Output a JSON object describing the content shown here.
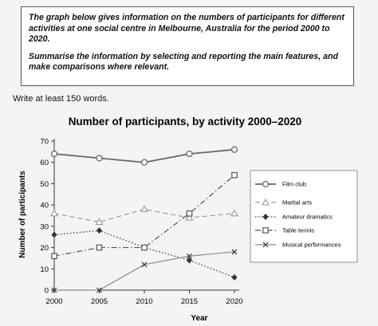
{
  "task": {
    "paragraph1": "The graph below gives information on the numbers of participants for different activities at one social centre in Melbourne, Australia for the period 2000 to 2020.",
    "paragraph2": "Summarise the information by selecting and reporting the main features, and make comparisons where relevant."
  },
  "instruction": "Write at least 150 words.",
  "chart_data": {
    "type": "line",
    "title": "Number of participants, by activity 2000–2020",
    "xlabel": "Year",
    "ylabel": "Number of participants",
    "x": [
      2000,
      2005,
      2010,
      2015,
      2020
    ],
    "ylim": [
      0,
      70
    ],
    "yticks": [
      0,
      10,
      20,
      30,
      40,
      50,
      60,
      70
    ],
    "grid": false,
    "legend_position": "right",
    "series": [
      {
        "name": "Film club",
        "values": [
          64,
          62,
          60,
          64,
          66
        ],
        "marker": "circle",
        "dash": "solid",
        "color": "#666666"
      },
      {
        "name": "Martial arts",
        "values": [
          36,
          32,
          38,
          34,
          36
        ],
        "marker": "triangle",
        "dash": "dashed",
        "color": "#9a9a9a"
      },
      {
        "name": "Amateur dramatics",
        "values": [
          26,
          28,
          20,
          14,
          6
        ],
        "marker": "diamond",
        "dash": "dotted",
        "color": "#333333"
      },
      {
        "name": "Table tennis",
        "values": [
          16,
          20,
          20,
          36,
          54
        ],
        "marker": "square",
        "dash": "dashdot",
        "color": "#555555"
      },
      {
        "name": "Musical performances",
        "values": [
          0,
          0,
          12,
          16,
          18
        ],
        "marker": "x",
        "dash": "solid",
        "color": "#8a8a8a"
      }
    ]
  }
}
